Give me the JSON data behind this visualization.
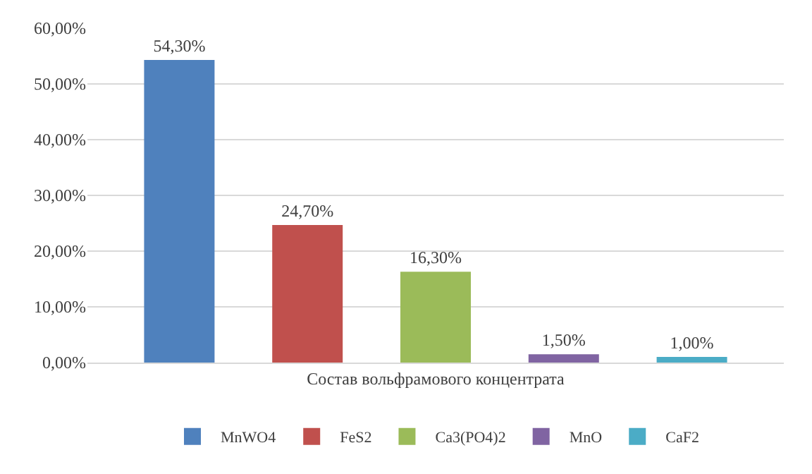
{
  "chart_data": {
    "type": "bar",
    "categories": [
      "Состав вольфрамового концентрата"
    ],
    "series": [
      {
        "name": "MnWO4",
        "color": "#4f81bd",
        "values": [
          54.3
        ],
        "value_labels": [
          "54,30%"
        ]
      },
      {
        "name": "FeS2",
        "color": "#c0504d",
        "values": [
          24.7
        ],
        "value_labels": [
          "24,70%"
        ]
      },
      {
        "name": "Ca3(PO4)2",
        "color": "#9bbb59",
        "values": [
          16.3
        ],
        "value_labels": [
          "16,30%"
        ]
      },
      {
        "name": "MnO",
        "color": "#8064a2",
        "values": [
          1.5
        ],
        "value_labels": [
          "1,50%"
        ]
      },
      {
        "name": "CaF2",
        "color": "#4bacc6",
        "values": [
          1.0
        ],
        "value_labels": [
          "1,00%"
        ]
      }
    ],
    "ylim": [
      0,
      60
    ],
    "yticks": [
      {
        "value": 0,
        "label": "0,00%"
      },
      {
        "value": 10,
        "label": "10,00%"
      },
      {
        "value": 20,
        "label": "20,00%"
      },
      {
        "value": 30,
        "label": "30,00%"
      },
      {
        "value": 40,
        "label": "40,00%"
      },
      {
        "value": 50,
        "label": "50,00%"
      },
      {
        "value": 60,
        "label": "60,00%"
      }
    ],
    "grid": "y",
    "legend": "bottom"
  }
}
